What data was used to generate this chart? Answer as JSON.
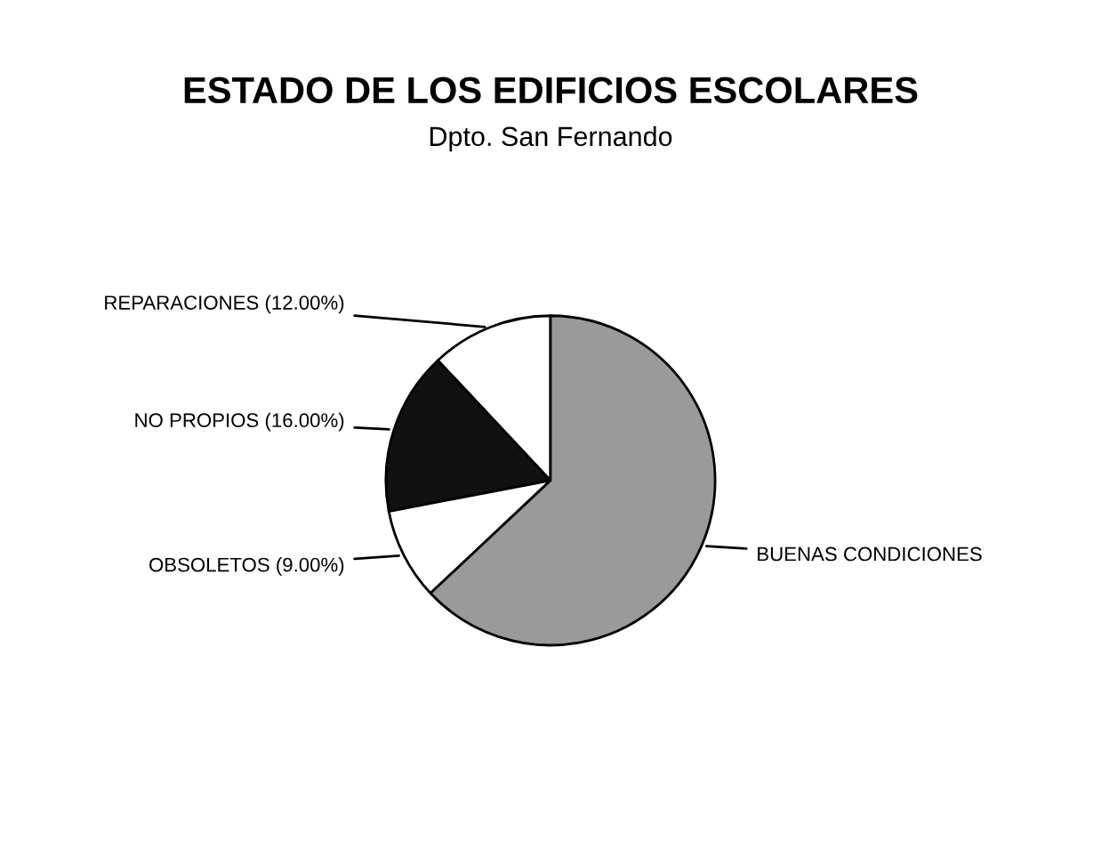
{
  "chart_data": {
    "type": "pie",
    "title": "ESTADO DE LOS EDIFICIOS ESCOLARES",
    "subtitle": "Dpto. San Fernando",
    "categories": [
      "REPARACIONES",
      "NO PROPIOS",
      "OBSOLETOS",
      "BUENAS CONDICIONES"
    ],
    "values": [
      12,
      16,
      9,
      63
    ],
    "value_labels": [
      "(12.00%)",
      "(16.00%)",
      "(9.00%)",
      null
    ],
    "colors": [
      "#ffffff",
      "#111111",
      "#ffffff",
      "#9a9a9a"
    ],
    "legend": false
  }
}
